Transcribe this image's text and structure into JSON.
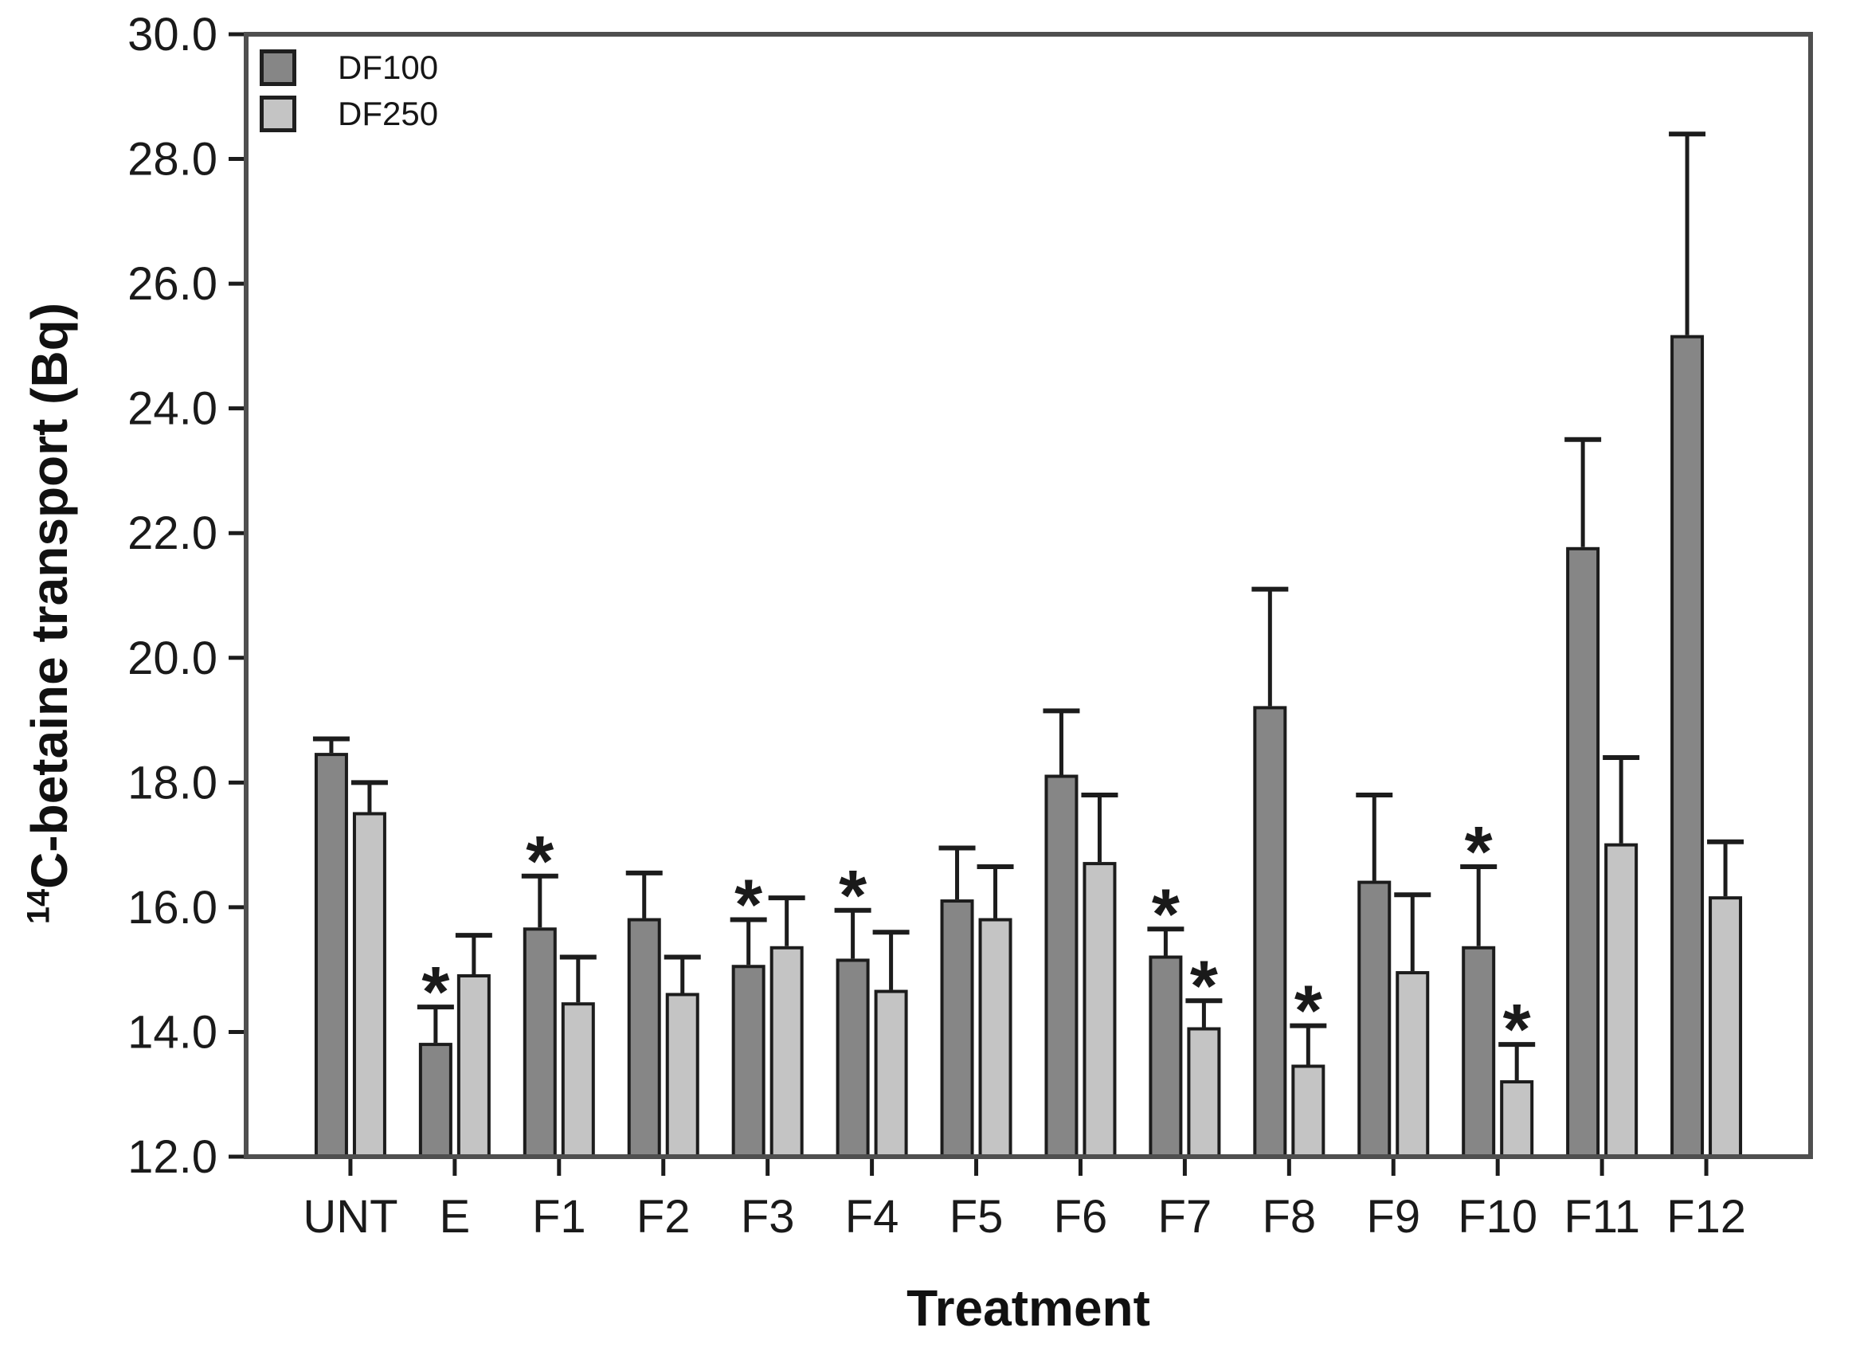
{
  "figure": {
    "y_axis": {
      "label_sup": "14",
      "label_main": "C-betaine transport (Bq)",
      "tick_labels": [
        "30.0",
        "28.0",
        "26.0",
        "24.0",
        "22.0",
        "20.0",
        "18.0",
        "16.0",
        "14.0",
        "12.0"
      ]
    },
    "x_axis": {
      "label": "Treatment"
    },
    "legend": {
      "entries": [
        "DF100",
        "DF250"
      ]
    }
  },
  "chart_data": {
    "type": "bar",
    "title": "",
    "xlabel": "Treatment",
    "ylabel": "14C-betaine transport (Bq)",
    "ylabel_sup": "14",
    "ylabel_main": "C-betaine transport (Bq)",
    "ylim": [
      12.0,
      30.0
    ],
    "ytick_interval": 2.0,
    "y_ticks": [
      30.0,
      28.0,
      26.0,
      24.0,
      22.0,
      20.0,
      18.0,
      16.0,
      14.0,
      12.0
    ],
    "grid": false,
    "legend_position": "upper-left-inside",
    "error_bars": "upper, with caps",
    "significance_marker": "*",
    "categories": [
      "UNT",
      "E",
      "F1",
      "F2",
      "F3",
      "F4",
      "F5",
      "F6",
      "F7",
      "F8",
      "F9",
      "F10",
      "F11",
      "F12"
    ],
    "series": [
      {
        "name": "DF100",
        "color": "#868686",
        "values": [
          18.45,
          13.8,
          15.65,
          15.8,
          15.05,
          15.15,
          16.1,
          18.1,
          15.2,
          19.2,
          16.4,
          15.35,
          21.75,
          25.15
        ],
        "errors_plus": [
          0.25,
          0.6,
          0.85,
          0.75,
          0.75,
          0.8,
          0.85,
          1.05,
          0.45,
          1.9,
          1.4,
          1.3,
          1.75,
          3.25
        ],
        "significant": [
          false,
          true,
          true,
          false,
          true,
          true,
          false,
          false,
          true,
          false,
          false,
          true,
          false,
          false
        ]
      },
      {
        "name": "DF250",
        "color": "#c4c4c4",
        "values": [
          17.5,
          14.9,
          14.45,
          14.6,
          15.35,
          14.65,
          15.8,
          16.7,
          14.05,
          13.45,
          14.95,
          13.2,
          17.0,
          16.15
        ],
        "errors_plus": [
          0.5,
          0.65,
          0.75,
          0.6,
          0.8,
          0.95,
          0.85,
          1.1,
          0.45,
          0.65,
          1.25,
          0.6,
          1.4,
          0.9
        ],
        "significant": [
          false,
          false,
          false,
          false,
          false,
          false,
          false,
          false,
          true,
          true,
          false,
          true,
          false,
          false
        ]
      }
    ]
  }
}
